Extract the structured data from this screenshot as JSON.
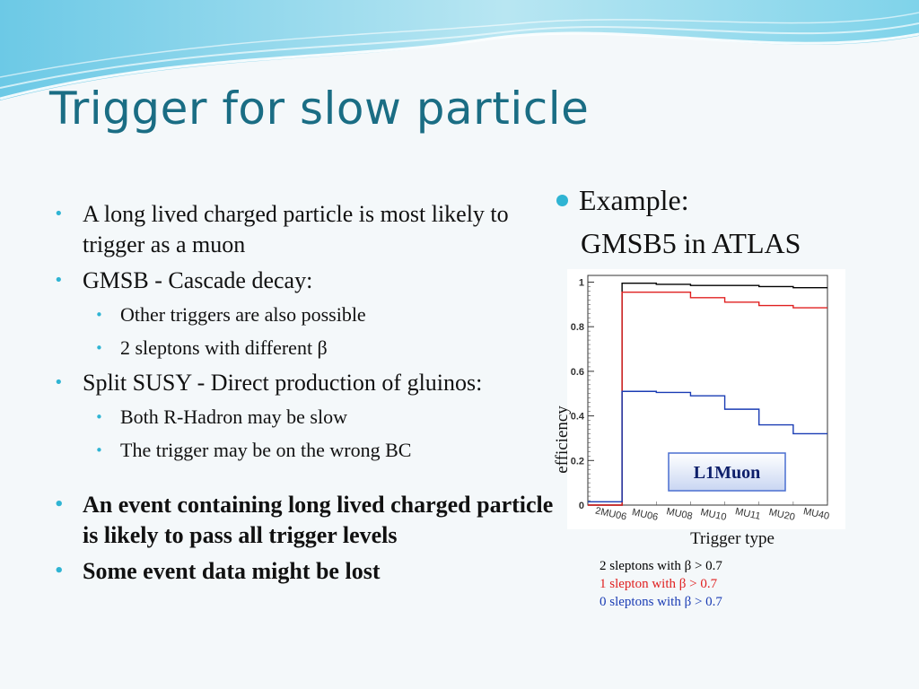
{
  "slide": {
    "title": "Trigger for slow particle"
  },
  "bullets": {
    "b1": "A long lived charged particle is most likely to trigger as a muon",
    "b2": "GMSB - Cascade decay:",
    "b2a": "Other triggers are also possible",
    "b2b": "2 sleptons with different β",
    "b3": "Split SUSY  - Direct production of gluinos:",
    "b3a": "Both R-Hadron may be slow",
    "b3b": "The trigger may be on the wrong BC",
    "b4": "An event containing long lived charged particle is likely to pass all trigger levels",
    "b5": "Some event data might be lost"
  },
  "example": {
    "label": "Example:",
    "detail": "GMSB5 in ATLAS"
  },
  "colors": {
    "title": "#1a6d84",
    "bullet": "#2fb4d3",
    "two_sleptons": "#000000",
    "one_slepton": "#e02020",
    "zero_sleptons": "#1a3cb4"
  },
  "chart_data": {
    "type": "line",
    "step": true,
    "xlabel": "Trigger type",
    "ylabel": "efficiency",
    "annotation": "L1Muon",
    "categories": [
      "2MU06",
      "MU06",
      "MU08",
      "MU10",
      "MU11",
      "MU20",
      "MU40"
    ],
    "yticks": [
      "0",
      "0.2",
      "0.4",
      "0.6",
      "0.8",
      "1"
    ],
    "ylim": [
      0,
      1.03
    ],
    "series": [
      {
        "name": "2 sleptons with β > 0.7",
        "color": "#000000",
        "values": [
          0.0,
          0.995,
          0.99,
          0.985,
          0.985,
          0.98,
          0.975
        ]
      },
      {
        "name": "1 slepton with β > 0.7",
        "color": "#e02020",
        "values": [
          0.0,
          0.955,
          0.955,
          0.93,
          0.91,
          0.895,
          0.885
        ]
      },
      {
        "name": "0 sleptons with β > 0.7",
        "color": "#1a3cb4",
        "values": [
          0.015,
          0.51,
          0.505,
          0.49,
          0.43,
          0.36,
          0.32
        ]
      }
    ]
  }
}
